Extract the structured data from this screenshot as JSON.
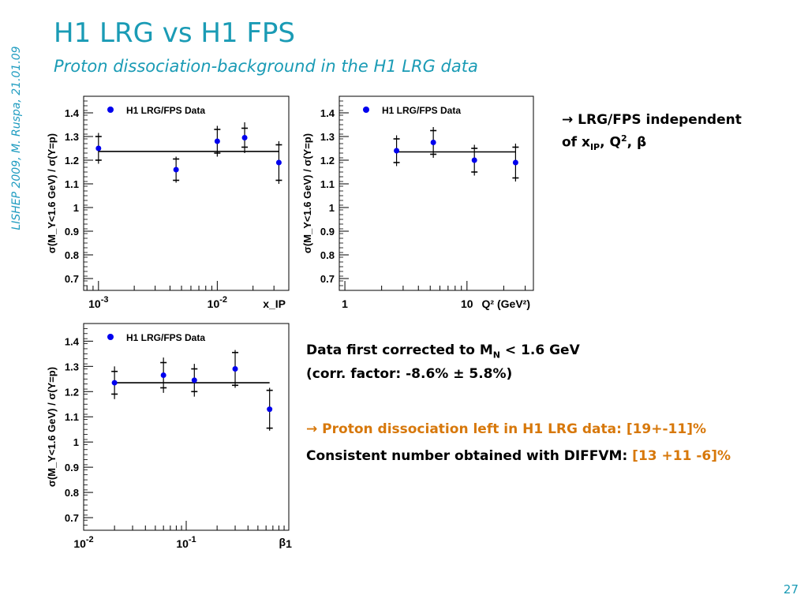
{
  "slide": {
    "side_text": "LISHEP 2009, M. Ruspa, 21.01.09",
    "title": "H1 LRG vs H1 FPS",
    "subtitle": "Proton dissociation-background in the H1 LRG data",
    "page_number": "27"
  },
  "notes": {
    "n1_arrow": "→",
    "n1_line1": "LRG/FPS independent",
    "n1_line2_a": "of x",
    "n1_line2_sub": "IP",
    "n1_line2_b": ", Q",
    "n1_line2_sup": "2",
    "n1_line2_c": ", β",
    "n2_line1_a": "Data first corrected to M",
    "n2_line1_sub": "N",
    "n2_line1_b": " < 1.6 GeV",
    "n2_line2": "(corr. factor: -8.6% ± 5.8%)",
    "n3_arrow": "→",
    "n3_text": "Proton dissociation left in H1 LRG data: [19+-11]%",
    "n4_text": "Consistent number obtained with DIFFVM: ",
    "n4_value": "[13 +11 -6]%"
  },
  "chart_data": [
    {
      "type": "scatter",
      "legend": "H1 LRG/FPS Data",
      "ylabel": "σ(M_Y<1.6 GeV) / σ(Y=p)",
      "xlabel": "x_IP",
      "xscale": "log",
      "xlim": [
        0.00075,
        0.04
      ],
      "ylim": [
        0.65,
        1.47
      ],
      "yticks": [
        0.7,
        0.8,
        0.9,
        1,
        1.1,
        1.2,
        1.3,
        1.4
      ],
      "ytick_labels": [
        "0.7",
        "0.8",
        "0.9",
        "1",
        "1.1",
        "1.2",
        "1.3",
        "1.4"
      ],
      "xticks": [
        {
          "v": 0.001,
          "base": "10",
          "exp": "-3"
        },
        {
          "v": 0.01,
          "base": "10",
          "exp": "-2"
        }
      ],
      "x": [
        0.001,
        0.0045,
        0.01,
        0.017,
        0.033
      ],
      "y": [
        1.25,
        1.16,
        1.28,
        1.295,
        1.19
      ],
      "yerr_stat": [
        0.05,
        0.045,
        0.05,
        0.04,
        0.075
      ],
      "yerr_tot": [
        0.065,
        0.055,
        0.065,
        0.065,
        0.09
      ],
      "fit": {
        "value": 1.237,
        "x_range": [
          0.001,
          0.033
        ]
      }
    },
    {
      "type": "scatter",
      "legend": "H1 LRG/FPS Data",
      "ylabel": "σ(M_Y<1.6 GeV) / σ(Y=p)",
      "xlabel": "Q² (GeV²)",
      "xscale": "log",
      "xlim": [
        0.9,
        35
      ],
      "ylim": [
        0.65,
        1.47
      ],
      "yticks": [
        0.7,
        0.8,
        0.9,
        1,
        1.1,
        1.2,
        1.3,
        1.4
      ],
      "ytick_labels": [
        "0.7",
        "0.8",
        "0.9",
        "1",
        "1.1",
        "1.2",
        "1.3",
        "1.4"
      ],
      "xticks": [
        {
          "v": 1,
          "base": "1",
          "exp": ""
        },
        {
          "v": 10,
          "base": "10",
          "exp": ""
        }
      ],
      "x": [
        2.65,
        5.3,
        11.5,
        25.0
      ],
      "y": [
        1.24,
        1.275,
        1.2,
        1.19
      ],
      "yerr_stat": [
        0.05,
        0.05,
        0.05,
        0.065
      ],
      "yerr_tot": [
        0.065,
        0.065,
        0.065,
        0.08
      ],
      "fit": {
        "value": 1.235,
        "x_range": [
          2.65,
          25.0
        ]
      }
    },
    {
      "type": "scatter",
      "legend": "H1 LRG/FPS Data",
      "ylabel": "σ(M_Y<1.6 GeV) / σ(Y=p)",
      "xlabel": "β",
      "xscale": "log",
      "xlim": [
        0.01,
        1.0
      ],
      "ylim": [
        0.65,
        1.47
      ],
      "yticks": [
        0.7,
        0.8,
        0.9,
        1,
        1.1,
        1.2,
        1.3,
        1.4
      ],
      "ytick_labels": [
        "0.7",
        "0.8",
        "0.9",
        "1",
        "1.1",
        "1.2",
        "1.3",
        "1.4"
      ],
      "xticks": [
        {
          "v": 0.01,
          "base": "10",
          "exp": "-2"
        },
        {
          "v": 0.1,
          "base": "10",
          "exp": "-1"
        },
        {
          "v": 1,
          "base": "1",
          "exp": ""
        }
      ],
      "x": [
        0.02,
        0.06,
        0.12,
        0.3,
        0.65
      ],
      "y": [
        1.235,
        1.265,
        1.245,
        1.29,
        1.13
      ],
      "yerr_stat": [
        0.045,
        0.05,
        0.045,
        0.065,
        0.075
      ],
      "yerr_tot": [
        0.065,
        0.07,
        0.065,
        0.075,
        0.085
      ],
      "fit": {
        "value": 1.235,
        "x_range": [
          0.02,
          0.65
        ]
      }
    }
  ]
}
